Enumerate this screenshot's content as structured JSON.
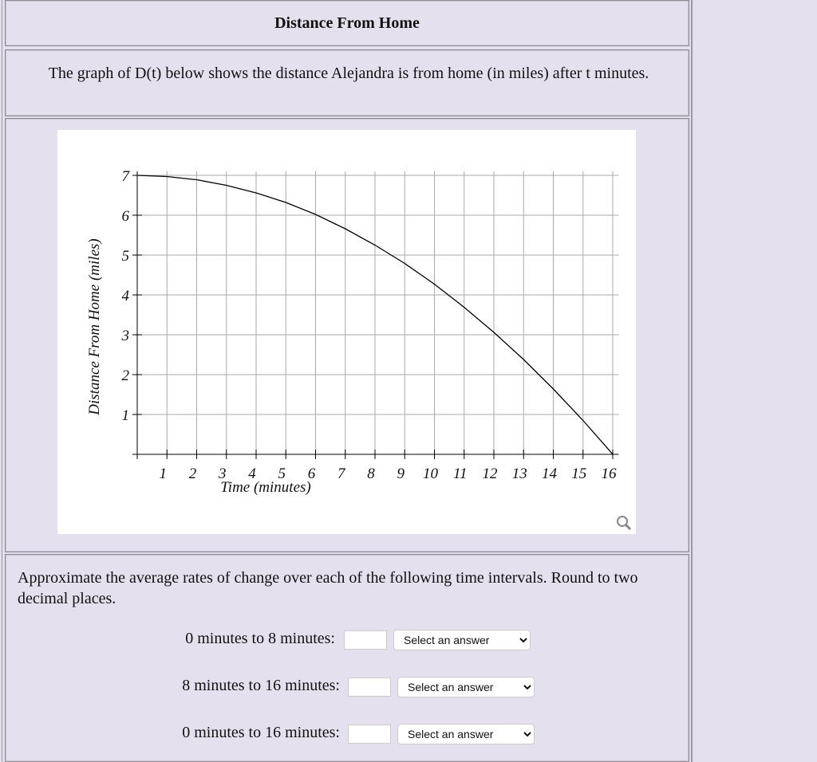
{
  "header": {
    "title": "Distance From Home"
  },
  "description": "The graph of D(t) below shows the distance Alejandra is from home (in miles) after t minutes.",
  "chart_data": {
    "type": "line",
    "xlabel": "Time (minutes)",
    "ylabel": "Distance From Home (miles)",
    "x": [
      0,
      1,
      2,
      3,
      4,
      5,
      6,
      7,
      8,
      9,
      10,
      11,
      12,
      13,
      14,
      15,
      16
    ],
    "values": [
      7,
      6.97,
      6.89,
      6.75,
      6.56,
      6.32,
      6.02,
      5.66,
      5.25,
      4.79,
      4.27,
      3.69,
      3.06,
      2.38,
      1.64,
      0.85,
      0
    ],
    "color": "#000000",
    "xlim": [
      0,
      16.2
    ],
    "ylim": [
      0,
      7.1
    ],
    "xticks": [
      1,
      2,
      3,
      4,
      5,
      6,
      7,
      8,
      9,
      10,
      11,
      12,
      13,
      14,
      15,
      16
    ],
    "yticks": [
      1,
      2,
      3,
      4,
      5,
      6,
      7
    ],
    "grid": true
  },
  "question": {
    "prompt": "Approximate the average rates of change over each of the following time intervals. Round to two decimal places.",
    "rows": [
      {
        "label": "0 minutes to 8 minutes:",
        "select": "Select an answer"
      },
      {
        "label": "8 minutes to 16 minutes:",
        "select": "Select an answer"
      },
      {
        "label": "0 minutes to 16 minutes:",
        "select": "Select an answer"
      }
    ]
  }
}
